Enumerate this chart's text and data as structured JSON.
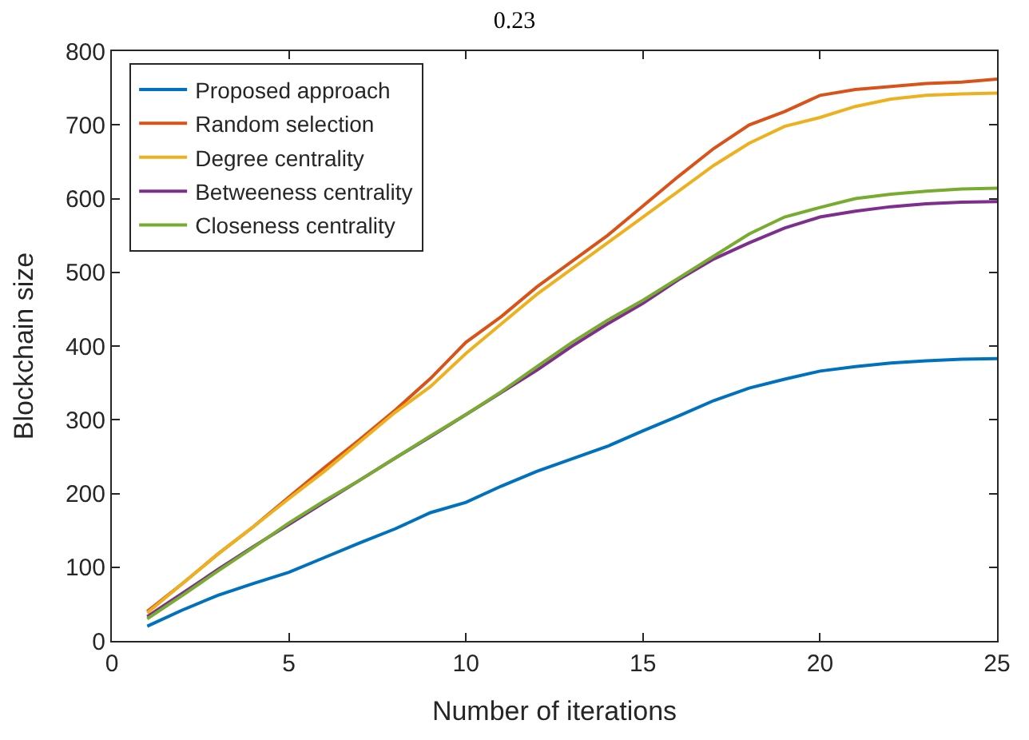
{
  "chart_data": {
    "type": "line",
    "title": "0.23",
    "xlabel": "Number of iterations",
    "ylabel": "Blockchain size",
    "x": [
      1,
      2,
      3,
      4,
      5,
      6,
      7,
      8,
      9,
      10,
      11,
      12,
      13,
      14,
      15,
      16,
      17,
      18,
      19,
      20,
      21,
      22,
      23,
      24,
      25
    ],
    "series": [
      {
        "name": "Proposed approach",
        "color": "#0072bd",
        "values": [
          20,
          42,
          62,
          78,
          93,
          113,
          133,
          152,
          174,
          188,
          210,
          230,
          247,
          264,
          285,
          305,
          326,
          343,
          355,
          366,
          372,
          377,
          380,
          382,
          383
        ]
      },
      {
        "name": "Random selection",
        "color": "#d95319",
        "values": [
          40,
          78,
          118,
          155,
          195,
          235,
          273,
          313,
          356,
          405,
          440,
          480,
          515,
          550,
          590,
          630,
          668,
          700,
          718,
          740,
          748,
          752,
          756,
          758,
          762
        ]
      },
      {
        "name": "Degree centrality",
        "color": "#edb120",
        "values": [
          38,
          78,
          118,
          155,
          193,
          230,
          270,
          310,
          345,
          390,
          430,
          470,
          505,
          540,
          575,
          610,
          645,
          675,
          698,
          710,
          725,
          735,
          740,
          742,
          743
        ]
      },
      {
        "name": "Betweeness centrality",
        "color": "#7e2f8e",
        "values": [
          33,
          65,
          97,
          128,
          158,
          188,
          218,
          248,
          277,
          307,
          337,
          367,
          400,
          430,
          458,
          490,
          518,
          540,
          560,
          575,
          583,
          589,
          593,
          595,
          596
        ]
      },
      {
        "name": "Closeness centrality",
        "color": "#77ac30",
        "values": [
          30,
          62,
          95,
          127,
          160,
          190,
          218,
          248,
          278,
          307,
          338,
          372,
          405,
          435,
          462,
          492,
          522,
          552,
          575,
          588,
          600,
          606,
          610,
          613,
          614
        ]
      }
    ],
    "xlim": [
      0,
      25
    ],
    "xticks": [
      0,
      5,
      10,
      15,
      20,
      25
    ],
    "ylim": [
      0,
      800
    ],
    "yticks": [
      0,
      100,
      200,
      300,
      400,
      500,
      600,
      700,
      800
    ],
    "legend": "top left",
    "marker": "none",
    "line_style": "solid"
  }
}
